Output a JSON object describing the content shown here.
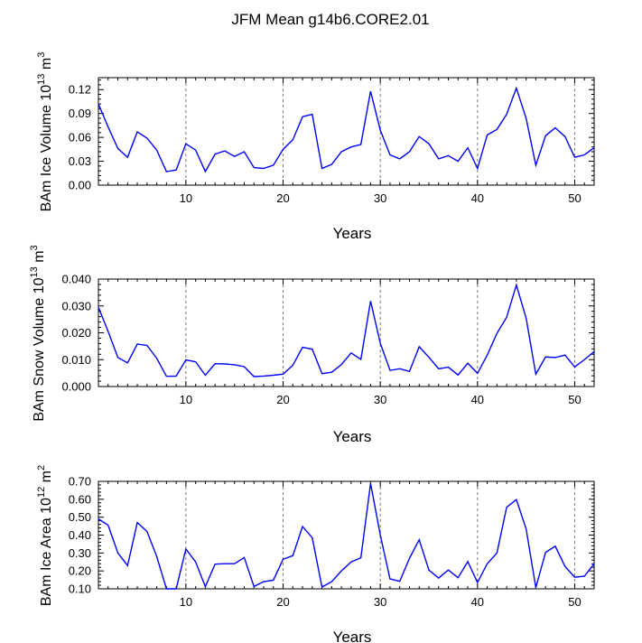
{
  "title": "JFM Mean g14b6.CORE2.01",
  "colors": {
    "line": "#0000ff",
    "axis": "#000000",
    "refline": "#777777"
  },
  "chart_data": [
    {
      "type": "line",
      "title": "",
      "xlabel": "Years",
      "ylabel": "BAm Ice Volume 10",
      "ylabel_exp": "13",
      "ylabel_unit": " m",
      "ylabel_unit_exp": "3",
      "xlim": [
        1,
        52
      ],
      "ylim": [
        0.0,
        0.135
      ],
      "xticks": [
        10,
        20,
        30,
        40,
        50
      ],
      "yticks": [
        0.0,
        0.03,
        0.06,
        0.09,
        0.12
      ],
      "ytick_labels": [
        "0.00",
        "0.03",
        "0.06",
        "0.09",
        "0.12"
      ],
      "ref_lines_x": [
        10,
        20,
        30,
        40,
        50
      ],
      "x": [
        1,
        2,
        3,
        4,
        5,
        6,
        7,
        8,
        9,
        10,
        11,
        12,
        13,
        14,
        15,
        16,
        17,
        18,
        19,
        20,
        21,
        22,
        23,
        24,
        25,
        26,
        27,
        28,
        29,
        30,
        31,
        32,
        33,
        34,
        35,
        36,
        37,
        38,
        39,
        40,
        41,
        42,
        43,
        44,
        45,
        46,
        47,
        48,
        49,
        50,
        51,
        52
      ],
      "series": [
        {
          "name": "BAm Ice Volume",
          "values": [
            0.102,
            0.073,
            0.046,
            0.035,
            0.067,
            0.059,
            0.044,
            0.017,
            0.019,
            0.052,
            0.044,
            0.017,
            0.039,
            0.043,
            0.036,
            0.042,
            0.022,
            0.021,
            0.025,
            0.045,
            0.057,
            0.086,
            0.089,
            0.021,
            0.026,
            0.042,
            0.048,
            0.051,
            0.118,
            0.069,
            0.038,
            0.033,
            0.042,
            0.061,
            0.052,
            0.033,
            0.037,
            0.03,
            0.047,
            0.021,
            0.063,
            0.07,
            0.089,
            0.122,
            0.084,
            0.025,
            0.062,
            0.072,
            0.061,
            0.035,
            0.038,
            0.047
          ]
        }
      ]
    },
    {
      "type": "line",
      "title": "",
      "xlabel": "Years",
      "ylabel": "BAm Snow Volume 10",
      "ylabel_exp": "13",
      "ylabel_unit": " m",
      "ylabel_unit_exp": "3",
      "xlim": [
        1,
        52
      ],
      "ylim": [
        0.0,
        0.04
      ],
      "xticks": [
        10,
        20,
        30,
        40,
        50
      ],
      "yticks": [
        0.0,
        0.01,
        0.02,
        0.03,
        0.04
      ],
      "ytick_labels": [
        "0.000",
        "0.010",
        "0.020",
        "0.030",
        "0.040"
      ],
      "ref_lines_x": [
        10,
        20,
        30,
        40,
        50
      ],
      "x": [
        1,
        2,
        3,
        4,
        5,
        6,
        7,
        8,
        9,
        10,
        11,
        12,
        13,
        14,
        15,
        16,
        17,
        18,
        19,
        20,
        21,
        22,
        23,
        24,
        25,
        26,
        27,
        28,
        29,
        30,
        31,
        32,
        33,
        34,
        35,
        36,
        37,
        38,
        39,
        40,
        41,
        42,
        43,
        44,
        45,
        46,
        47,
        48,
        49,
        50,
        51,
        52
      ],
      "series": [
        {
          "name": "BAm Snow Volume",
          "values": [
            0.0295,
            0.0205,
            0.0108,
            0.0088,
            0.0158,
            0.0153,
            0.0105,
            0.0038,
            0.0039,
            0.0099,
            0.0092,
            0.0042,
            0.0085,
            0.0084,
            0.0081,
            0.0074,
            0.0037,
            0.0039,
            0.0042,
            0.0046,
            0.0079,
            0.0146,
            0.0139,
            0.0048,
            0.0053,
            0.0082,
            0.0125,
            0.0101,
            0.0318,
            0.0161,
            0.006,
            0.0066,
            0.0056,
            0.0148,
            0.0109,
            0.0066,
            0.0072,
            0.0043,
            0.0087,
            0.0049,
            0.0117,
            0.0198,
            0.0258,
            0.0378,
            0.0255,
            0.0046,
            0.011,
            0.0108,
            0.0117,
            0.0073,
            0.01,
            0.013
          ]
        }
      ]
    },
    {
      "type": "line",
      "title": "",
      "xlabel": "Years",
      "ylabel": "BAm Ice Area 10",
      "ylabel_exp": "12",
      "ylabel_unit": " m",
      "ylabel_unit_exp": "2",
      "xlim": [
        1,
        52
      ],
      "ylim": [
        0.1,
        0.7
      ],
      "xticks": [
        10,
        20,
        30,
        40,
        50
      ],
      "yticks": [
        0.1,
        0.2,
        0.3,
        0.4,
        0.5,
        0.6,
        0.7
      ],
      "ytick_labels": [
        "0.10",
        "0.20",
        "0.30",
        "0.40",
        "0.50",
        "0.60",
        "0.70"
      ],
      "ref_lines_x": [
        10,
        20,
        30,
        40,
        50
      ],
      "x": [
        1,
        2,
        3,
        4,
        5,
        6,
        7,
        8,
        9,
        10,
        11,
        12,
        13,
        14,
        15,
        16,
        17,
        18,
        19,
        20,
        21,
        22,
        23,
        24,
        25,
        26,
        27,
        28,
        29,
        30,
        31,
        32,
        33,
        34,
        35,
        36,
        37,
        38,
        39,
        40,
        41,
        42,
        43,
        44,
        45,
        46,
        47,
        48,
        49,
        50,
        51,
        52
      ],
      "series": [
        {
          "name": "BAm Ice Area",
          "values": [
            0.49,
            0.455,
            0.3,
            0.23,
            0.47,
            0.42,
            0.28,
            0.1,
            0.1,
            0.322,
            0.25,
            0.112,
            0.238,
            0.24,
            0.24,
            0.275,
            0.113,
            0.14,
            0.148,
            0.265,
            0.285,
            0.448,
            0.385,
            0.11,
            0.14,
            0.2,
            0.25,
            0.273,
            0.688,
            0.4,
            0.155,
            0.142,
            0.27,
            0.374,
            0.205,
            0.16,
            0.205,
            0.162,
            0.252,
            0.135,
            0.24,
            0.3,
            0.555,
            0.598,
            0.435,
            0.107,
            0.303,
            0.338,
            0.225,
            0.165,
            0.17,
            0.24
          ]
        }
      ]
    }
  ]
}
